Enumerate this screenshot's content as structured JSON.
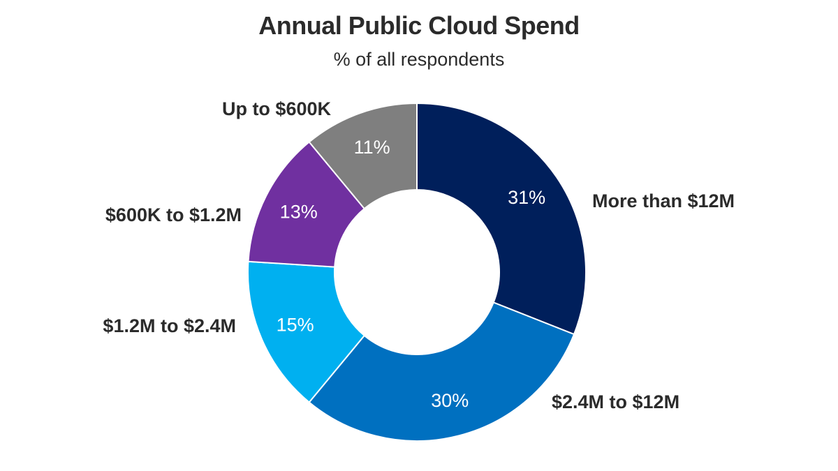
{
  "chart_data": {
    "type": "pie",
    "subtype": "donut",
    "title": "Annual Public Cloud Spend",
    "subtitle": "% of all respondents",
    "categories": [
      "More than $12M",
      "$2.4M to $12M",
      "$1.2M to $2.4M",
      "$600K to $1.2M",
      "Up to $600K"
    ],
    "values": [
      31,
      30,
      15,
      13,
      11
    ],
    "value_labels": [
      "31%",
      "30%",
      "15%",
      "13%",
      "11%"
    ],
    "colors": [
      "#001f5b",
      "#0070c0",
      "#00b0f0",
      "#7030a0",
      "#7f7f7f"
    ],
    "start_angle_deg": 0,
    "direction": "clockwise",
    "legend": "none (category labels placed beside slices)"
  }
}
